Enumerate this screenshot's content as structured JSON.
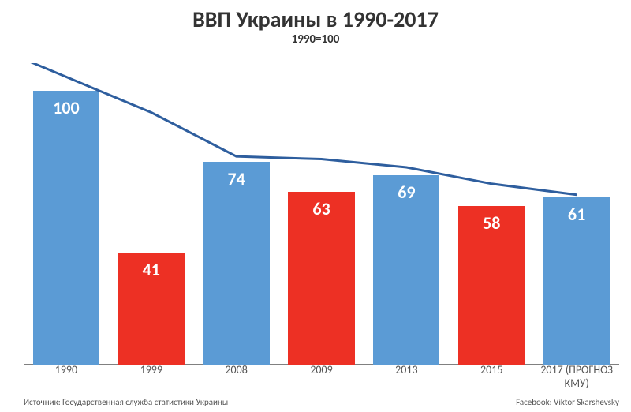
{
  "chart": {
    "type": "bar+line",
    "title": "ВВП Украины в 1990-2017",
    "subtitle": "1990=100",
    "title_fontsize": 28,
    "subtitle_fontsize": 15,
    "background_color": "#ffffff",
    "axis_color": "#808080",
    "ylim": [
      0,
      110
    ],
    "bar_width_ratio": 0.78,
    "bar_label_fontsize": 22,
    "categories": [
      "1990",
      "1999",
      "2008",
      "2009",
      "2013",
      "2015",
      "2017 (ПРОГНОЗ КМУ)"
    ],
    "values": [
      100,
      41,
      74,
      63,
      69,
      58,
      61
    ],
    "bar_colors": [
      "#5b9bd5",
      "#ed3024",
      "#5b9bd5",
      "#ed3024",
      "#5b9bd5",
      "#ed3024",
      "#5b9bd5"
    ],
    "x_label_fontsize": 14,
    "x_label_color": "#555555",
    "line": {
      "color": "#2e5e9e",
      "width": 3,
      "points_y": [
        105,
        92,
        76,
        75,
        72,
        66,
        62
      ]
    }
  },
  "footer": {
    "left": "Источник: Государственная служба статистики Украины",
    "right": "Facebook: Viktor Skarshevsky",
    "fontsize": 11,
    "color": "#555555"
  }
}
